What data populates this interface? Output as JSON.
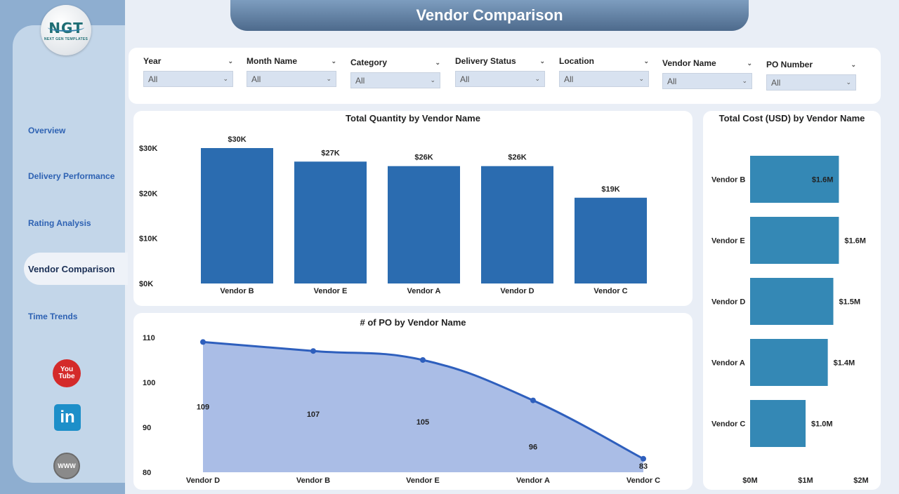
{
  "app": {
    "title": "Vendor Comparison",
    "logo_text": "NGT",
    "logo_subtext": "NEXT GEN TEMPLATES"
  },
  "sidebar": {
    "items": [
      {
        "label": "Overview",
        "active": false
      },
      {
        "label": "Delivery Performance",
        "active": false
      },
      {
        "label": "Rating Analysis",
        "active": false
      },
      {
        "label": "Vendor Comparison",
        "active": true
      },
      {
        "label": "Time Trends",
        "active": false
      }
    ],
    "social": {
      "youtube_line1": "You",
      "youtube_line2": "Tube",
      "linkedin": "in",
      "web": "WWW"
    }
  },
  "filters": [
    {
      "label": "Year",
      "value": "All"
    },
    {
      "label": "Month Name",
      "value": "All"
    },
    {
      "label": "Category",
      "value": "All"
    },
    {
      "label": "Delivery Status",
      "value": "All"
    },
    {
      "label": "Location",
      "value": "All"
    },
    {
      "label": "Vendor Name",
      "value": "All"
    },
    {
      "label": "PO Number",
      "value": "All"
    }
  ],
  "colors": {
    "bar": "#2b6cb0",
    "hbar": "#3488b5",
    "area_fill": "#aabde6",
    "line": "#2e5fbd",
    "accent_banner": "#5b7ba0"
  },
  "chart_data": [
    {
      "type": "bar",
      "title": "Total Quantity by Vendor Name",
      "categories": [
        "Vendor B",
        "Vendor E",
        "Vendor A",
        "Vendor D",
        "Vendor C"
      ],
      "values": [
        30,
        27,
        26,
        26,
        19
      ],
      "data_labels": [
        "$30K",
        "$27K",
        "$26K",
        "$26K",
        "$19K"
      ],
      "yticks": [
        "$0K",
        "$10K",
        "$20K",
        "$30K"
      ],
      "ylim": [
        0,
        30
      ],
      "xlabel": "",
      "ylabel": ""
    },
    {
      "type": "area",
      "title": "# of PO by Vendor Name",
      "categories": [
        "Vendor D",
        "Vendor B",
        "Vendor E",
        "Vendor A",
        "Vendor C"
      ],
      "values": [
        109,
        107,
        105,
        96,
        83
      ],
      "yticks": [
        "80",
        "90",
        "100",
        "110"
      ],
      "ylim": [
        80,
        110
      ],
      "xlabel": "",
      "ylabel": ""
    },
    {
      "type": "bar",
      "orientation": "horizontal",
      "title": "Total Cost (USD) by Vendor Name",
      "categories": [
        "Vendor B",
        "Vendor E",
        "Vendor D",
        "Vendor A",
        "Vendor C"
      ],
      "values": [
        1.6,
        1.6,
        1.5,
        1.4,
        1.0
      ],
      "data_labels": [
        "$1.6M",
        "$1.6M",
        "$1.5M",
        "$1.4M",
        "$1.0M"
      ],
      "xticks": [
        "$0M",
        "$1M",
        "$2M"
      ],
      "xlim": [
        0,
        2
      ],
      "xlabel": "",
      "ylabel": ""
    }
  ]
}
